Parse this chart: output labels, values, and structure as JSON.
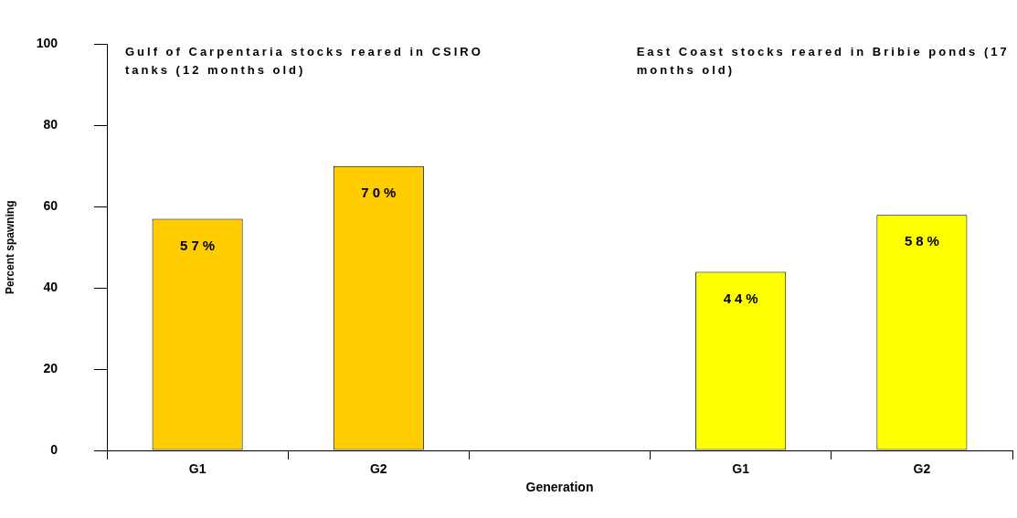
{
  "chart_data": {
    "type": "bar",
    "categories": [
      "G1",
      "G2",
      null,
      "G1",
      "G2"
    ],
    "values": [
      57,
      70,
      null,
      44,
      58
    ],
    "colors": [
      "#ffcc00",
      "#ffcc00",
      null,
      "#ffff00",
      "#ffff00"
    ],
    "value_labels": [
      "57%",
      "70%",
      null,
      "44%",
      "58%"
    ],
    "xlabel": "Generation",
    "ylabel": "Percent spawning",
    "ylim": [
      0,
      100
    ],
    "yticks": [
      0,
      20,
      40,
      60,
      80,
      100
    ],
    "grid": false,
    "legend": false,
    "annotations": [
      "Gulf of Carpentaria stocks reared in CSIRO tanks (12 months old)",
      "East Coast stocks reared in Bribie ponds (17 months old)"
    ]
  }
}
